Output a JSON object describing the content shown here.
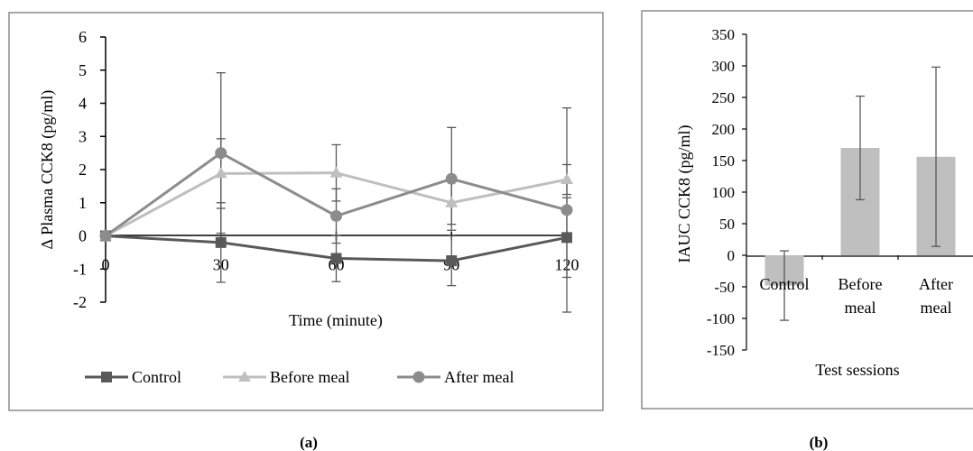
{
  "chart_data": [
    {
      "type": "line",
      "panel_label": "(a)",
      "title": "",
      "xlabel": "Time (minute)",
      "ylabel": "∆ Plasma CCK8 (pg/ml)",
      "x": [
        0,
        30,
        60,
        90,
        120
      ],
      "x_tick_labels": [
        "0",
        "30",
        "60",
        "90",
        "120"
      ],
      "ylim": [
        -2,
        6
      ],
      "y_ticks": [
        -2,
        -1,
        0,
        1,
        2,
        3,
        4,
        5,
        6
      ],
      "legend_position": "bottom",
      "grid": false,
      "series": [
        {
          "name": "Control",
          "marker": "square",
          "color": "#595959",
          "values": [
            0,
            -0.2,
            -0.68,
            -0.75,
            -0.05
          ],
          "error": [
            0,
            1.2,
            0.7,
            0.75,
            1.2
          ]
        },
        {
          "name": "Before meal",
          "marker": "triangle",
          "color": "#bfbfbf",
          "values": [
            0,
            1.88,
            1.9,
            1.0,
            1.7
          ],
          "error": [
            0,
            1.05,
            0.85,
            0.65,
            0.45
          ]
        },
        {
          "name": "After meal",
          "marker": "circle",
          "color": "#8c8c8c",
          "values": [
            0,
            2.5,
            0.6,
            1.72,
            0.78
          ],
          "error": [
            0,
            2.42,
            0.82,
            1.55,
            3.08
          ]
        }
      ]
    },
    {
      "type": "bar",
      "panel_label": "(b)",
      "title": "",
      "xlabel": "Test sessions",
      "ylabel": "IAUC CCK8 (pg/ml)",
      "categories": [
        [
          "Control"
        ],
        [
          "Before",
          "meal"
        ],
        [
          "After",
          "meal"
        ]
      ],
      "values": [
        -48,
        170,
        156
      ],
      "error": [
        55,
        82,
        142
      ],
      "ylim": [
        -150,
        350
      ],
      "y_ticks": [
        -150,
        -100,
        -50,
        0,
        50,
        100,
        150,
        200,
        250,
        300,
        350
      ],
      "bar_color": "#bfbfbf",
      "grid": false
    }
  ]
}
